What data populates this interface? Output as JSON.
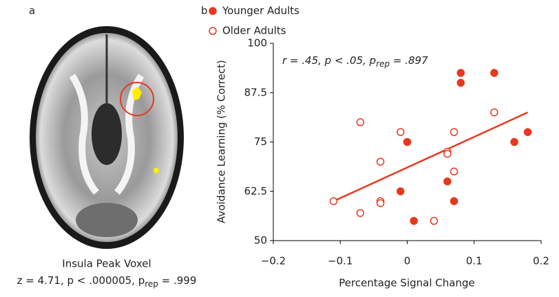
{
  "panel_a": {
    "label": "a",
    "caption": "Insula Peak Voxel",
    "stat_parts": [
      "z = 4.71, p < .000005, p",
      "rep",
      " = .999"
    ]
  },
  "chart_data": {
    "type": "scatter",
    "panel_label": "b",
    "x_label": "Percentage Signal Change",
    "y_label": "Avoidance Learning (% Correct)",
    "annotation_parts": [
      "r = .45, p < .05, p",
      "rep",
      " = .897"
    ],
    "xlim": [
      -0.2,
      0.2
    ],
    "xticks": [
      {
        "value": -0.2,
        "label": "−0.2"
      },
      {
        "value": -0.1,
        "label": "−0.1"
      },
      0,
      0.1,
      0.2
    ],
    "ylim": [
      50,
      100
    ],
    "yticks": [
      50,
      62.5,
      75,
      87.5,
      100
    ],
    "series": [
      {
        "name": "Younger Adults",
        "color": "#e8381e",
        "marker": "filled",
        "x": [
          0.08,
          0.13,
          0.08,
          0.18,
          0.16,
          0.0,
          -0.01,
          0.06,
          0.07,
          0.01
        ],
        "values": [
          92.5,
          92.5,
          90,
          77.5,
          75,
          75,
          62.5,
          65,
          60,
          55
        ]
      },
      {
        "name": "Older Adults",
        "color": "#e8381e",
        "marker": "open",
        "x": [
          -0.07,
          -0.01,
          0.07,
          0.13,
          0.06,
          0.06,
          -0.04,
          0.07,
          -0.11,
          -0.04,
          -0.04,
          -0.07,
          0.04
        ],
        "values": [
          80,
          77.5,
          77.5,
          82.5,
          72.5,
          72,
          70,
          67.5,
          60,
          60,
          59.5,
          57,
          55
        ]
      }
    ],
    "trend_line": {
      "color": "#e8381e",
      "x": [
        -0.11,
        0.18
      ],
      "values": [
        60,
        82.5
      ]
    }
  }
}
